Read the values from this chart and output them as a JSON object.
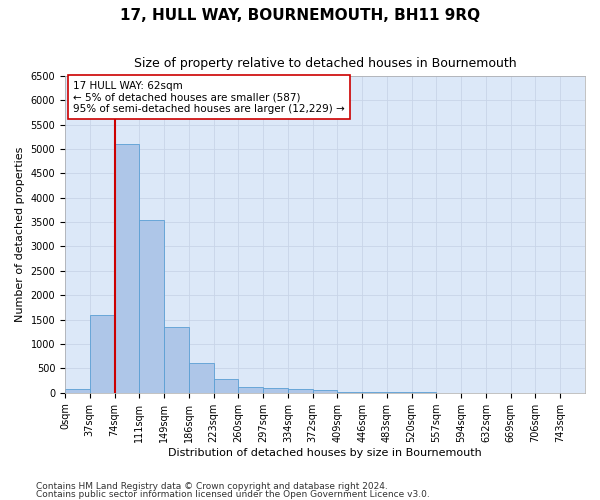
{
  "title": "17, HULL WAY, BOURNEMOUTH, BH11 9RQ",
  "subtitle": "Size of property relative to detached houses in Bournemouth",
  "xlabel": "Distribution of detached houses by size in Bournemouth",
  "ylabel": "Number of detached properties",
  "footer_line1": "Contains HM Land Registry data © Crown copyright and database right 2024.",
  "footer_line2": "Contains public sector information licensed under the Open Government Licence v3.0.",
  "bin_labels": [
    "0sqm",
    "37sqm",
    "74sqm",
    "111sqm",
    "149sqm",
    "186sqm",
    "223sqm",
    "260sqm",
    "297sqm",
    "334sqm",
    "372sqm",
    "409sqm",
    "446sqm",
    "483sqm",
    "520sqm",
    "557sqm",
    "594sqm",
    "632sqm",
    "669sqm",
    "706sqm",
    "743sqm"
  ],
  "bar_values": [
    75,
    1600,
    5100,
    3550,
    1350,
    600,
    275,
    125,
    100,
    75,
    50,
    20,
    15,
    10,
    5,
    3,
    2,
    1,
    0,
    0
  ],
  "bar_color": "#aec6e8",
  "bar_edge_color": "#5a9fd4",
  "property_size": 62,
  "property_label": "17 HULL WAY: 62sqm",
  "annotation_line1": "← 5% of detached houses are smaller (587)",
  "annotation_line2": "95% of semi-detached houses are larger (12,229) →",
  "vline_x": 74,
  "vline_color": "#cc0000",
  "annotation_box_color": "#ffffff",
  "annotation_box_edge": "#cc0000",
  "grid_color": "#c8d4e8",
  "background_color": "#dce8f8",
  "ylim": [
    0,
    6500
  ],
  "yticks": [
    0,
    500,
    1000,
    1500,
    2000,
    2500,
    3000,
    3500,
    4000,
    4500,
    5000,
    5500,
    6000,
    6500
  ],
  "bin_width": 37,
  "num_bins": 20,
  "title_fontsize": 11,
  "subtitle_fontsize": 9,
  "axis_label_fontsize": 8,
  "tick_fontsize": 7,
  "annotation_fontsize": 7.5,
  "footer_fontsize": 6.5
}
